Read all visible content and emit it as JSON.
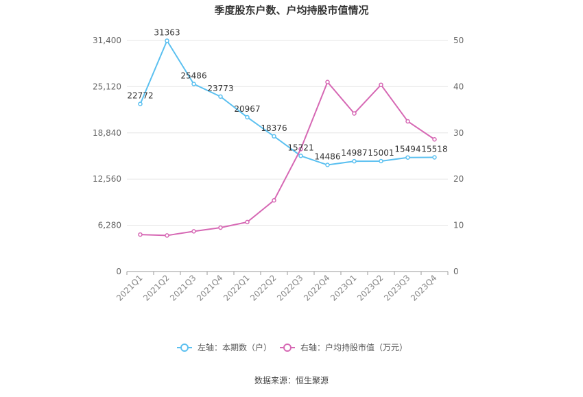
{
  "chart_data": {
    "type": "line",
    "title": "季度股东户数、户均持股市值情况",
    "categories": [
      "2021Q1",
      "2021Q2",
      "2021Q3",
      "2021Q4",
      "2022Q1",
      "2022Q2",
      "2022Q3",
      "2022Q4",
      "2023Q1",
      "2023Q2",
      "2023Q3",
      "2023Q4"
    ],
    "series": [
      {
        "name": "左轴：本期数（户）",
        "axis": "left",
        "color": "#5bc0f0",
        "values": [
          22772,
          31363,
          25486,
          23773,
          20967,
          18376,
          15721,
          14486,
          14987,
          15001,
          15494,
          15518
        ],
        "labels": [
          "22772",
          "31363",
          "25486",
          "23773",
          "20967",
          "18376",
          "15721",
          "14486",
          "14987",
          "15001",
          "15494",
          "15518"
        ]
      },
      {
        "name": "右轴：户均持股市值（万元）",
        "axis": "right",
        "color": "#d668b4",
        "values": [
          8.0,
          7.8,
          8.7,
          9.5,
          10.7,
          15.4,
          26.5,
          41.0,
          34.2,
          40.4,
          32.5,
          28.6
        ]
      }
    ],
    "y_left": {
      "min": 0,
      "max": 31400,
      "ticks": [
        0,
        6280,
        12560,
        18840,
        25120,
        31400
      ],
      "tick_labels": [
        "0",
        "6,280",
        "12,560",
        "18,840",
        "25,120",
        "31,400"
      ]
    },
    "y_right": {
      "min": 0,
      "max": 50,
      "ticks": [
        0,
        10,
        20,
        30,
        40,
        50
      ],
      "tick_labels": [
        "0",
        "10",
        "20",
        "30",
        "40",
        "50"
      ]
    },
    "grid": true,
    "legend_position": "bottom",
    "source": "数据来源：恒生聚源"
  }
}
